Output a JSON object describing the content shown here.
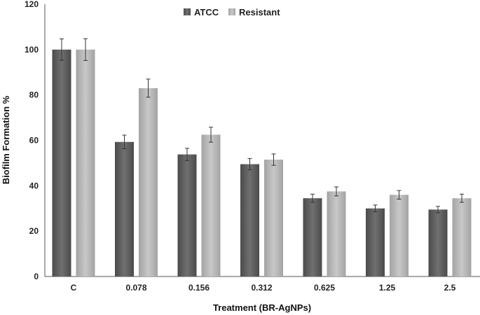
{
  "chart_data": {
    "type": "bar",
    "title": "",
    "xlabel": "Treatment (BR-AgNPs)",
    "ylabel": "Biofilm Formation %",
    "ylim": [
      0,
      120
    ],
    "yticks": [
      0,
      20,
      40,
      60,
      80,
      100,
      120
    ],
    "categories": [
      "C",
      "0.078",
      "0.156",
      "0.312",
      "0.625",
      "1.25",
      "2.5"
    ],
    "series": [
      {
        "name": "ATCC",
        "color_top": "#4a4a4a",
        "color_mid": "#6f6f6f",
        "values": [
          100,
          59.3,
          53.8,
          49.5,
          34.5,
          30,
          29.5
        ],
        "errors": [
          4.7,
          3,
          2.7,
          2.5,
          1.8,
          1.5,
          1.4
        ]
      },
      {
        "name": "Resistant",
        "color_top": "#9a9a9a",
        "color_mid": "#c2c2c2",
        "values": [
          100,
          83,
          62.5,
          51.5,
          37.5,
          36,
          34.5
        ],
        "errors": [
          4.8,
          4,
          3.3,
          2.5,
          2,
          1.9,
          1.8
        ]
      }
    ],
    "legend_position": "top-center"
  }
}
